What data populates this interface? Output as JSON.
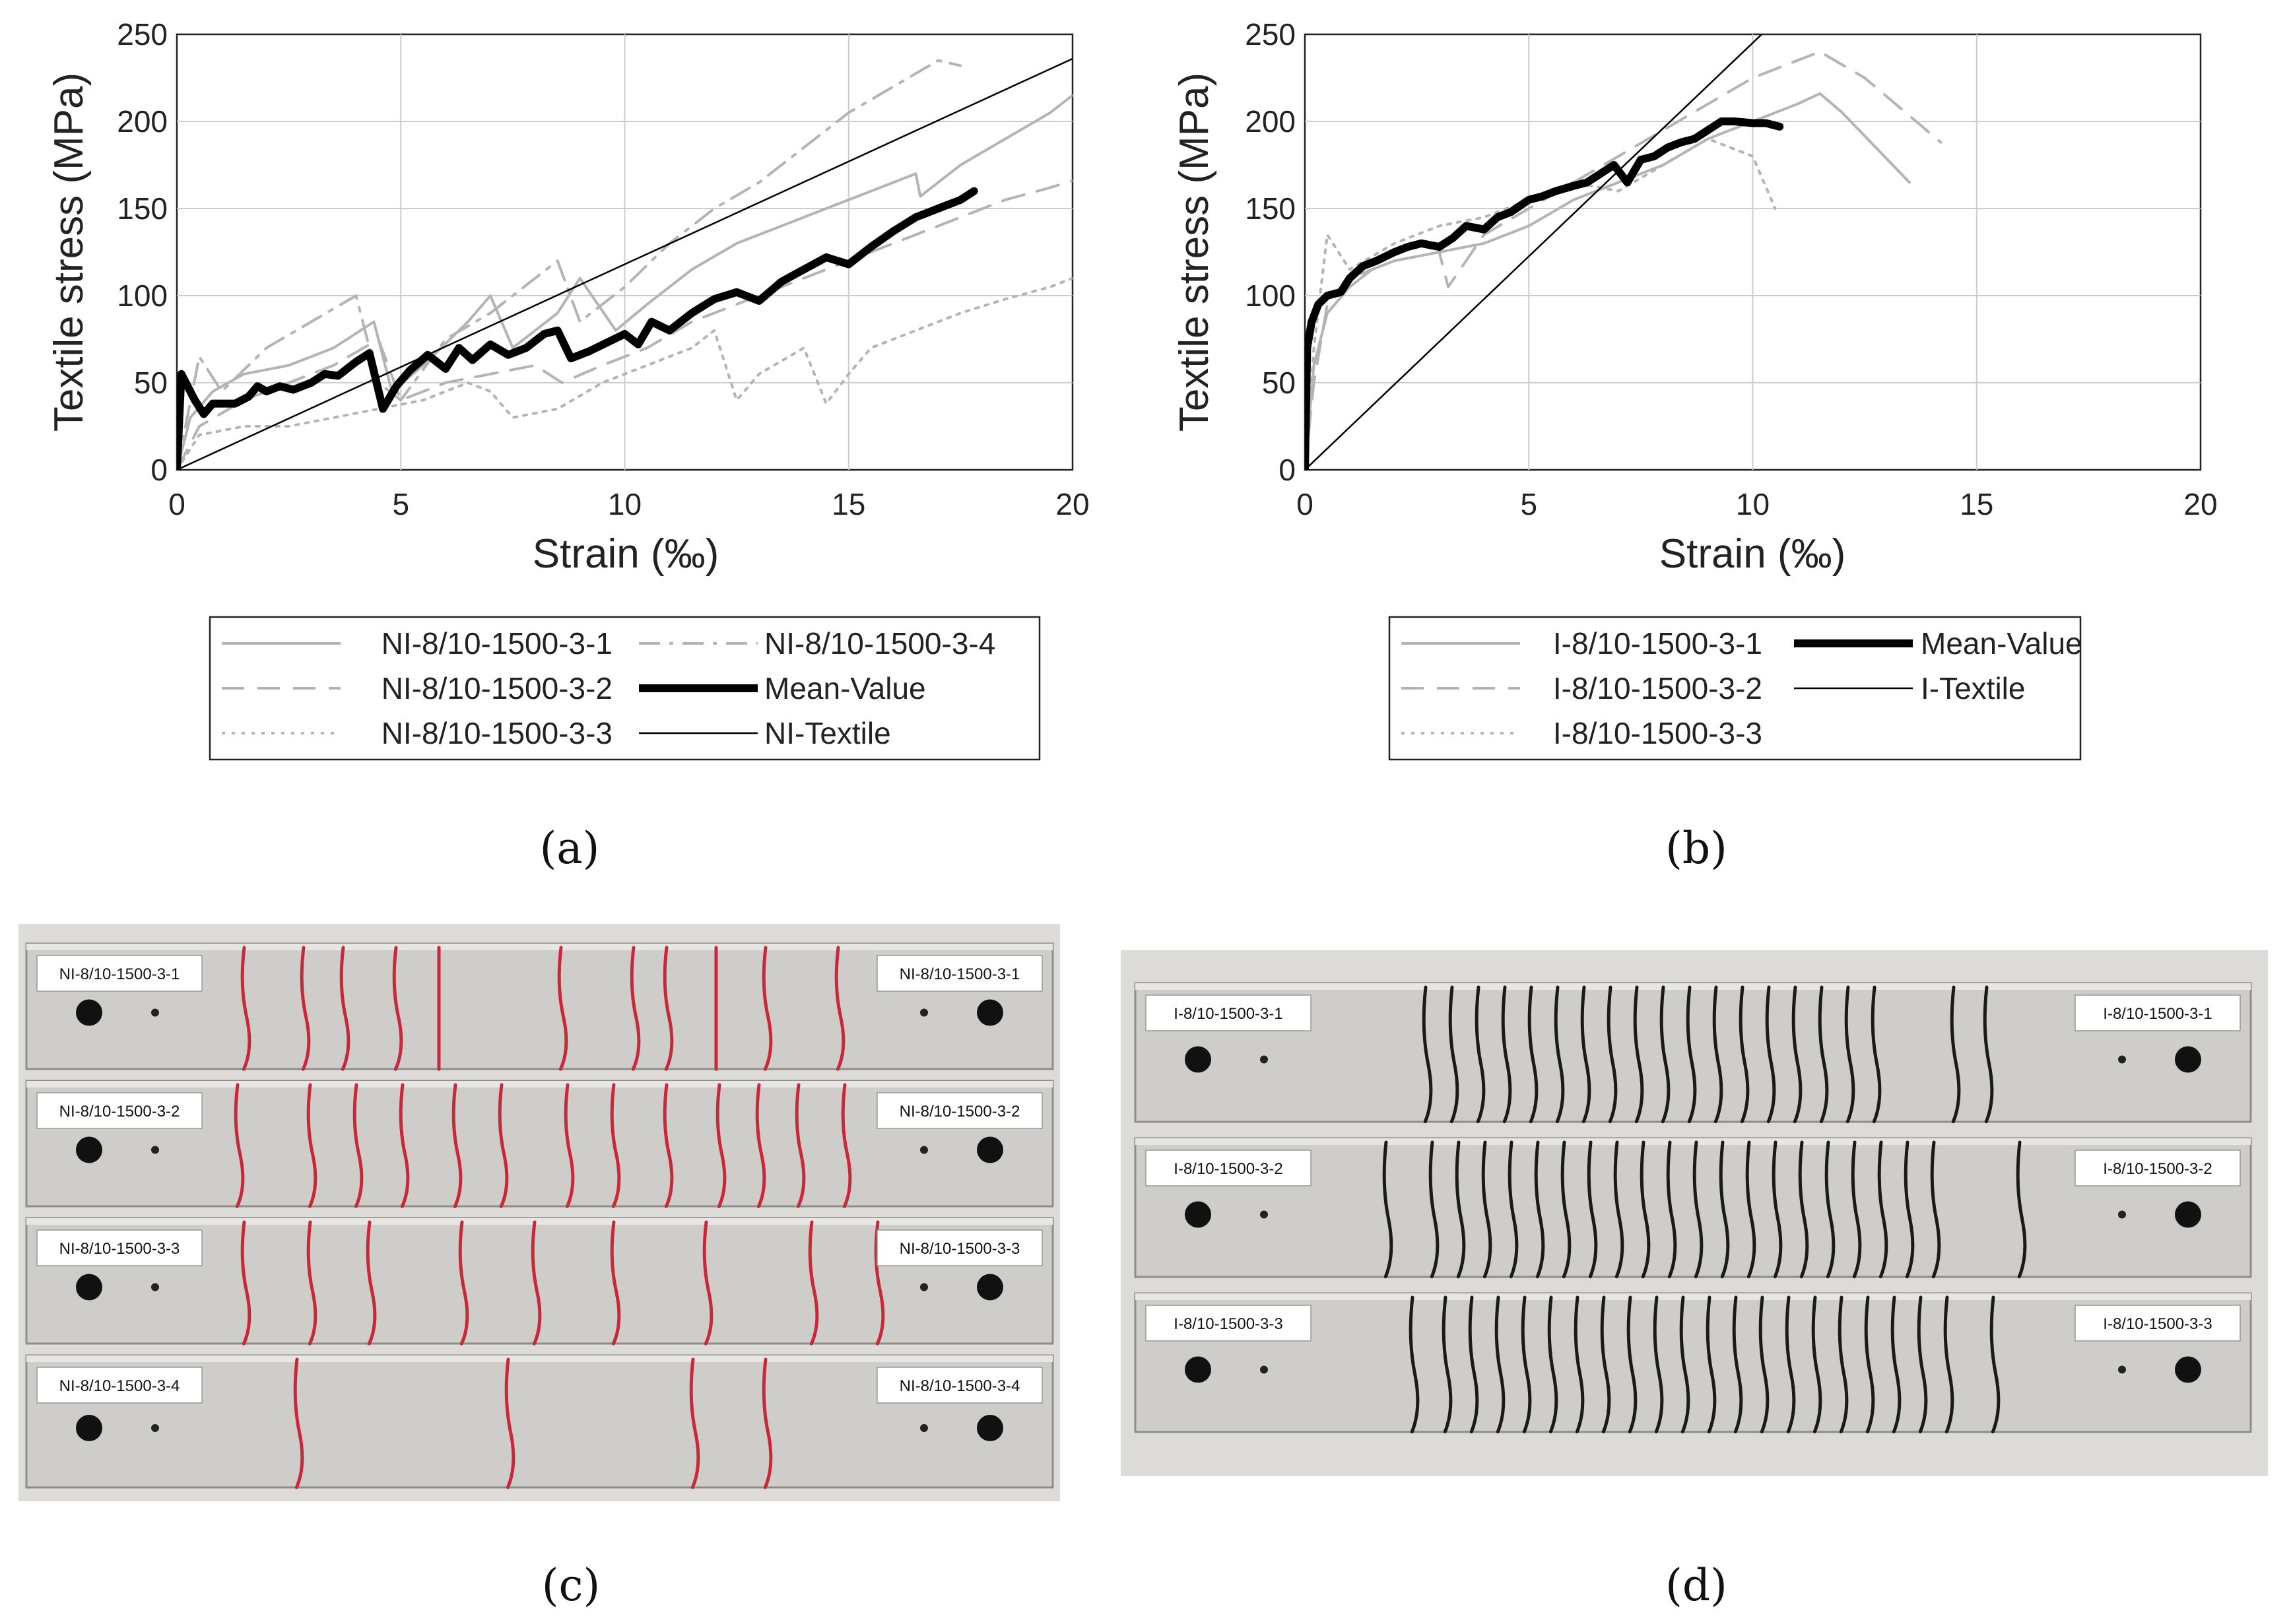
{
  "chart_data": [
    {
      "type": "line",
      "panel": "a",
      "caption": "(a)",
      "xlabel": "Strain (‰)",
      "ylabel": "Textile stress (MPa)",
      "xlim": [
        0,
        20
      ],
      "ylim": [
        0,
        250
      ],
      "xticks": [
        0,
        5,
        10,
        15,
        20
      ],
      "yticks": [
        0,
        50,
        100,
        150,
        200,
        250
      ],
      "grid": true,
      "legend_position": "below",
      "series": [
        {
          "name": "NI-8/10-1500-3-1",
          "style": "solid-gray",
          "x": [
            0,
            0.3,
            0.8,
            1.5,
            2.5,
            3.5,
            4.4,
            4.8,
            5.5,
            6.5,
            7.0,
            7.5,
            8.5,
            9.0,
            9.8,
            10.5,
            11.5,
            12.5,
            13.5,
            14.5,
            15.5,
            16.5,
            16.6,
            17.5,
            18.5,
            19.5,
            20
          ],
          "y": [
            0,
            30,
            45,
            55,
            60,
            70,
            85,
            45,
            60,
            85,
            100,
            70,
            90,
            110,
            80,
            95,
            115,
            130,
            140,
            150,
            160,
            170,
            157,
            175,
            190,
            205,
            215
          ]
        },
        {
          "name": "NI-8/10-1500-3-2",
          "style": "dashed-gray",
          "x": [
            0,
            0.5,
            1.5,
            2.5,
            3.5,
            4.5,
            5.0,
            6.0,
            7.0,
            8.0,
            8.6,
            9.5,
            10.5,
            11.5,
            12.5,
            13.5,
            14.5,
            15.5,
            16.5,
            17.5,
            18.5,
            19.5,
            20
          ],
          "y": [
            0,
            25,
            40,
            50,
            60,
            75,
            40,
            50,
            55,
            60,
            50,
            60,
            70,
            85,
            95,
            105,
            115,
            125,
            135,
            145,
            155,
            162,
            166
          ]
        },
        {
          "name": "NI-8/10-1500-3-3",
          "style": "dotted-gray",
          "x": [
            0,
            0.5,
            1.5,
            2.5,
            3.5,
            4.5,
            5.5,
            6.5,
            7.0,
            7.5,
            8.5,
            9.5,
            10.5,
            11.5,
            12.0,
            12.5,
            13.0,
            14.0,
            14.5,
            15.0,
            15.5,
            16.5,
            17.5,
            18.5,
            19.5,
            20
          ],
          "y": [
            0,
            20,
            25,
            25,
            30,
            35,
            40,
            50,
            45,
            30,
            35,
            50,
            60,
            70,
            80,
            40,
            55,
            70,
            38,
            55,
            70,
            80,
            90,
            98,
            105,
            110
          ]
        },
        {
          "name": "NI-8/10-1500-3-4",
          "style": "dashdot-gray",
          "x": [
            0,
            0.5,
            1.0,
            2.0,
            3.0,
            4.0,
            4.5,
            5.0,
            6.0,
            7.0,
            8.0,
            8.5,
            9.0,
            10.0,
            11.0,
            12.0,
            13.0,
            14.0,
            15.0,
            16.0,
            17.0,
            17.5
          ],
          "y": [
            0,
            65,
            45,
            70,
            85,
            100,
            50,
            40,
            75,
            90,
            110,
            120,
            85,
            105,
            130,
            150,
            165,
            185,
            205,
            220,
            235,
            232
          ]
        },
        {
          "name": "Mean-Value",
          "style": "thick-black",
          "x": [
            0,
            0.1,
            0.2,
            0.4,
            0.6,
            0.8,
            1.0,
            1.3,
            1.6,
            1.8,
            2.0,
            2.3,
            2.6,
            3.0,
            3.3,
            3.6,
            4.0,
            4.3,
            4.6,
            4.9,
            5.2,
            5.6,
            6.0,
            6.3,
            6.6,
            7.0,
            7.4,
            7.8,
            8.2,
            8.5,
            8.8,
            9.2,
            9.6,
            10.0,
            10.3,
            10.6,
            11.0,
            11.5,
            12.0,
            12.5,
            13.0,
            13.5,
            14.0,
            14.5,
            15.0,
            15.5,
            16.0,
            16.5,
            17.0,
            17.5,
            17.8
          ],
          "y": [
            0,
            55,
            50,
            40,
            32,
            38,
            38,
            38,
            42,
            48,
            45,
            48,
            46,
            50,
            55,
            54,
            62,
            67,
            35,
            48,
            57,
            66,
            58,
            70,
            63,
            72,
            66,
            70,
            78,
            80,
            64,
            68,
            73,
            78,
            72,
            85,
            80,
            90,
            98,
            102,
            97,
            108,
            115,
            122,
            118,
            128,
            137,
            145,
            150,
            155,
            160
          ]
        },
        {
          "name": "NI-Textile",
          "style": "thin-black",
          "x": [
            0,
            20
          ],
          "y": [
            0,
            236
          ]
        }
      ],
      "legend": [
        "NI-8/10-1500-3-1",
        "NI-8/10-1500-3-4",
        "NI-8/10-1500-3-2",
        "Mean-Value",
        "NI-8/10-1500-3-3",
        "NI-Textile"
      ]
    },
    {
      "type": "line",
      "panel": "b",
      "caption": "(b)",
      "xlabel": "Strain (‰)",
      "ylabel": "Textile stress (MPa)",
      "xlim": [
        0,
        20
      ],
      "ylim": [
        0,
        250
      ],
      "xticks": [
        0,
        5,
        10,
        15,
        20
      ],
      "yticks": [
        0,
        50,
        100,
        150,
        200,
        250
      ],
      "grid": true,
      "legend_position": "below",
      "series": [
        {
          "name": "I-8/10-1500-3-1",
          "style": "solid-gray",
          "x": [
            0,
            0.2,
            0.5,
            1.0,
            1.5,
            2.0,
            3.0,
            4.0,
            5.0,
            6.0,
            7.0,
            8.0,
            9.0,
            10.0,
            11.0,
            11.5,
            12.0,
            13.5
          ],
          "y": [
            0,
            60,
            90,
            105,
            115,
            120,
            125,
            130,
            140,
            155,
            165,
            175,
            190,
            200,
            210,
            216,
            205,
            165
          ]
        },
        {
          "name": "I-8/10-1500-3-2",
          "style": "dashed-gray",
          "x": [
            0,
            0.2,
            0.5,
            1.0,
            2.0,
            3.0,
            3.2,
            4.0,
            5.0,
            6.0,
            7.0,
            8.0,
            9.0,
            10.0,
            11.0,
            11.5,
            12.5,
            14.2
          ],
          "y": [
            0,
            50,
            95,
            110,
            120,
            125,
            105,
            135,
            150,
            165,
            180,
            195,
            210,
            225,
            235,
            240,
            225,
            188
          ]
        },
        {
          "name": "I-8/10-1500-3-3",
          "style": "dotted-gray",
          "x": [
            0,
            0.2,
            0.5,
            1.0,
            2.0,
            3.0,
            4.0,
            5.0,
            6.0,
            7.0,
            8.0,
            9.0,
            10.0,
            10.5
          ],
          "y": [
            0,
            70,
            135,
            115,
            130,
            140,
            145,
            155,
            165,
            160,
            175,
            190,
            180,
            150
          ]
        },
        {
          "name": "Mean-Value",
          "style": "thick-black",
          "x": [
            0,
            0.05,
            0.15,
            0.3,
            0.5,
            0.8,
            1.0,
            1.3,
            1.6,
            2.0,
            2.3,
            2.6,
            3.0,
            3.3,
            3.6,
            4.0,
            4.3,
            4.6,
            5.0,
            5.3,
            5.6,
            6.0,
            6.3,
            6.6,
            6.9,
            7.2,
            7.5,
            7.8,
            8.1,
            8.4,
            8.7,
            9.0,
            9.3,
            9.6,
            10.0,
            10.3,
            10.6
          ],
          "y": [
            0,
            70,
            85,
            95,
            100,
            102,
            110,
            117,
            120,
            125,
            128,
            130,
            128,
            133,
            140,
            138,
            145,
            148,
            155,
            157,
            160,
            163,
            165,
            170,
            175,
            165,
            178,
            180,
            185,
            188,
            190,
            195,
            200,
            200,
            199,
            199,
            197
          ]
        },
        {
          "name": "I-Textile",
          "style": "thin-black",
          "x": [
            0,
            10.2
          ],
          "y": [
            0,
            250
          ]
        }
      ],
      "legend": [
        "I-8/10-1500-3-1",
        "Mean-Value",
        "I-8/10-1500-3-2",
        "I-Textile",
        "I-8/10-1500-3-3"
      ]
    }
  ],
  "photos": {
    "c": {
      "caption": "(c)",
      "labels_left": [
        "NI-8/10-1500-3-1",
        "NI-8/10-1500-3-2",
        "NI-8/10-1500-3-3",
        "NI-8/10-1500-3-4"
      ],
      "labels_right": [
        "NI-8/10-1500-3-1",
        "NI-8/10-1500-3-2",
        "NI-8/10-1500-3-3",
        "NI-8/10-1500-3-4"
      ]
    },
    "d": {
      "caption": "(d)",
      "labels_left": [
        "I-8/10-1500-3-1",
        "I-8/10-1500-3-2",
        "I-8/10-1500-3-3"
      ],
      "labels_right": [
        "I-8/10-1500-3-1",
        "I-8/10-1500-3-2",
        "I-8/10-1500-3-3"
      ]
    }
  },
  "colors": {
    "specimen_gray": "#b4b4b4",
    "mean_black": "#000000",
    "grid": "#d0d0d0",
    "concrete": "#cfcdc9",
    "crack_red": "#c8283a",
    "crack_black": "#1a1a1a"
  }
}
